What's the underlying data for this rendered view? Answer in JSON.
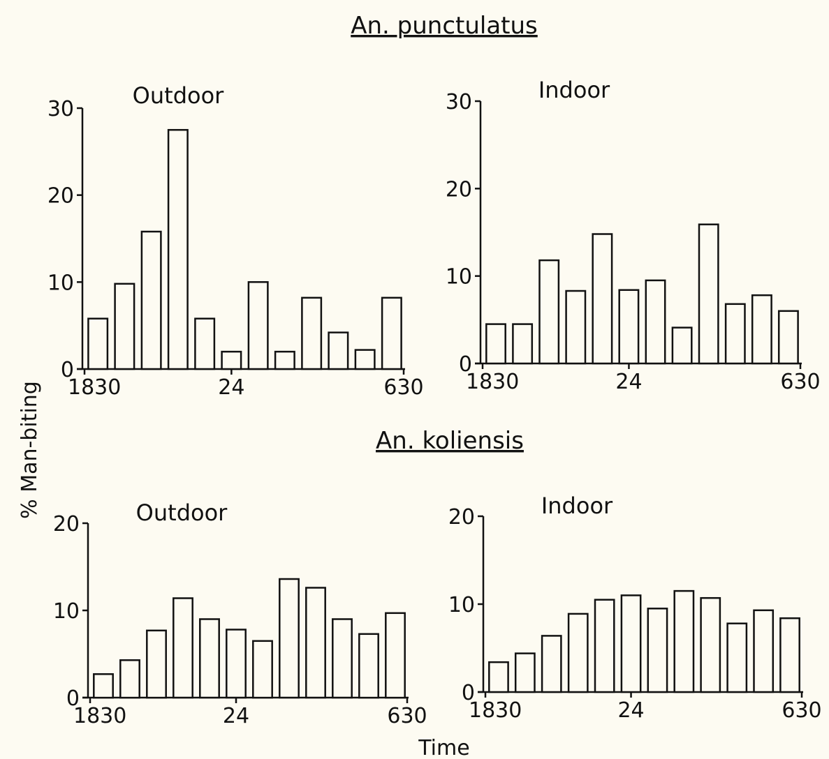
{
  "section_titles": [
    "An. punctulatus",
    "An. koliensis"
  ],
  "ylabel": "% Man-biting",
  "xlabel": "Time",
  "chart_data": [
    {
      "type": "bar",
      "title": "Outdoor",
      "section": "An. punctulatus",
      "x_tick_labels": [
        "1830",
        "24",
        "630"
      ],
      "y_ticks": [
        0,
        10,
        20,
        30
      ],
      "ylim": [
        0,
        30
      ],
      "values": [
        5.8,
        9.8,
        15.8,
        27.5,
        5.8,
        2.0,
        10.0,
        2.0,
        8.2,
        4.2,
        2.2,
        8.2
      ]
    },
    {
      "type": "bar",
      "title": "Indoor",
      "section": "An. punctulatus",
      "x_tick_labels": [
        "1830",
        "24",
        "630"
      ],
      "y_ticks": [
        0,
        10,
        20,
        30
      ],
      "ylim": [
        0,
        30
      ],
      "values": [
        4.5,
        4.5,
        11.8,
        8.3,
        14.8,
        8.4,
        9.5,
        4.1,
        15.9,
        6.8,
        7.8,
        6.0
      ]
    },
    {
      "type": "bar",
      "title": "Outdoor",
      "section": "An. koliensis",
      "x_tick_labels": [
        "1830",
        "24",
        "630"
      ],
      "y_ticks": [
        0,
        10,
        20
      ],
      "ylim": [
        0,
        20
      ],
      "values": [
        2.7,
        4.3,
        7.7,
        11.4,
        9.0,
        7.8,
        6.5,
        13.6,
        12.6,
        9.0,
        7.3,
        9.7
      ]
    },
    {
      "type": "bar",
      "title": "Indoor",
      "section": "An. koliensis",
      "x_tick_labels": [
        "1830",
        "24",
        "630"
      ],
      "y_ticks": [
        0,
        10,
        20
      ],
      "ylim": [
        0,
        20
      ],
      "values": [
        3.4,
        4.4,
        6.4,
        8.9,
        10.5,
        11.0,
        9.5,
        11.5,
        10.7,
        7.8,
        9.3,
        8.4
      ]
    }
  ]
}
